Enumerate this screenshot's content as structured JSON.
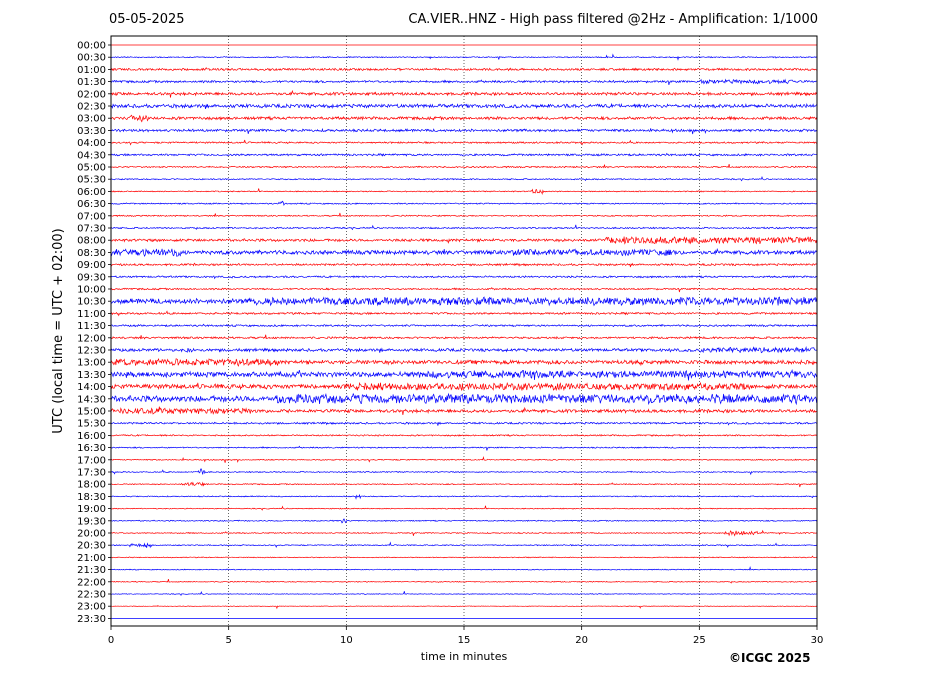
{
  "header": {
    "date": "05-05-2025",
    "title": "CA.VIER..HNZ - High pass filtered @2Hz - Amplification: 1/1000"
  },
  "footer": {
    "copyright": "©ICGC 2025"
  },
  "colors": {
    "trace_a": "#ff0000",
    "trace_b": "#0000ff",
    "grid": "#000000"
  },
  "chart_data": {
    "type": "line",
    "title": "CA.VIER..HNZ - High pass filtered @2Hz - Amplification: 1/1000",
    "xlabel": "time in minutes",
    "ylabel": "UTC (local time = UTC + 02:00)",
    "xlim": [
      0,
      30
    ],
    "x_ticks": [
      0,
      5,
      10,
      15,
      20,
      25,
      30
    ],
    "vertical_grid": true,
    "grid_style": "dotted",
    "row_labels": [
      "00:00",
      "00:30",
      "01:00",
      "01:30",
      "02:00",
      "02:30",
      "03:00",
      "03:30",
      "04:00",
      "04:30",
      "05:00",
      "05:30",
      "06:00",
      "06:30",
      "07:00",
      "07:30",
      "08:00",
      "08:30",
      "09:00",
      "09:30",
      "10:00",
      "10:30",
      "11:00",
      "11:30",
      "12:00",
      "12:30",
      "13:00",
      "13:30",
      "14:00",
      "14:30",
      "15:00",
      "15:30",
      "16:00",
      "16:30",
      "17:00",
      "17:30",
      "18:00",
      "18:30",
      "19:00",
      "19:30",
      "20:00",
      "20:30",
      "21:00",
      "21:30",
      "22:00",
      "22:30",
      "23:00",
      "23:30"
    ],
    "row_colors": [
      "red",
      "blue",
      "red",
      "blue",
      "red",
      "blue",
      "red",
      "blue",
      "red",
      "blue",
      "red",
      "blue",
      "red",
      "blue",
      "red",
      "blue",
      "red",
      "blue",
      "red",
      "blue",
      "red",
      "blue",
      "red",
      "blue",
      "red",
      "blue",
      "red",
      "blue",
      "red",
      "blue",
      "red",
      "blue",
      "red",
      "blue",
      "red",
      "blue",
      "red",
      "blue",
      "red",
      "blue",
      "red",
      "blue",
      "red",
      "blue",
      "red",
      "blue",
      "red",
      "blue"
    ],
    "noise_level": [
      0.3,
      0.6,
      1.2,
      1.2,
      1.6,
      2.0,
      1.6,
      1.4,
      0.9,
      1.1,
      0.8,
      0.7,
      0.6,
      0.7,
      0.7,
      0.8,
      1.5,
      2.2,
      1.1,
      1.0,
      0.9,
      2.8,
      1.1,
      1.0,
      1.1,
      1.6,
      2.2,
      2.8,
      2.6,
      3.4,
      1.8,
      1.0,
      0.8,
      0.7,
      0.6,
      0.6,
      0.6,
      0.6,
      0.5,
      0.6,
      0.6,
      0.6,
      0.5,
      0.5,
      0.5,
      0.4,
      0.3,
      0.2
    ],
    "rows_with_signal": [
      1,
      2,
      3,
      4,
      5,
      6,
      7,
      8,
      9,
      10,
      11,
      12,
      13,
      14,
      15,
      16,
      17,
      18,
      19,
      20,
      21,
      22,
      23,
      24,
      25,
      26,
      27,
      28,
      29,
      30,
      31,
      32,
      33,
      34,
      35,
      36,
      37,
      38,
      39,
      40,
      41,
      42,
      43,
      44,
      45,
      46
    ],
    "events": [
      {
        "row": 16,
        "start": 21,
        "end": 30,
        "amp": 2.5
      },
      {
        "row": 17,
        "start": 0,
        "end": 3,
        "amp": 2.2
      },
      {
        "row": 17,
        "start": 17,
        "end": 24,
        "amp": 1.5
      },
      {
        "row": 21,
        "start": 6,
        "end": 30,
        "amp": 1.8
      },
      {
        "row": 25,
        "start": 3.2,
        "end": 3.5,
        "amp": 3.0
      },
      {
        "row": 25,
        "start": 25,
        "end": 30,
        "amp": 1.5
      },
      {
        "row": 26,
        "start": 0,
        "end": 7,
        "amp": 1.8
      },
      {
        "row": 27,
        "start": 13,
        "end": 30,
        "amp": 1.5
      },
      {
        "row": 28,
        "start": 10,
        "end": 27,
        "amp": 1.5
      },
      {
        "row": 29,
        "start": 7,
        "end": 30,
        "amp": 2.0
      },
      {
        "row": 30,
        "start": 0,
        "end": 6,
        "amp": 1.5
      },
      {
        "row": 35,
        "start": 3.7,
        "end": 4.0,
        "amp": 3.0
      },
      {
        "row": 36,
        "start": 3,
        "end": 4,
        "amp": 1.5
      },
      {
        "row": 37,
        "start": 10.4,
        "end": 10.6,
        "amp": 2.5
      },
      {
        "row": 39,
        "start": 9.8,
        "end": 10.0,
        "amp": 2.5
      },
      {
        "row": 40,
        "start": 26,
        "end": 27.5,
        "amp": 2.5
      },
      {
        "row": 41,
        "start": 0.8,
        "end": 1.8,
        "amp": 1.5
      },
      {
        "row": 12,
        "start": 17.8,
        "end": 18.4,
        "amp": 2.0
      },
      {
        "row": 13,
        "start": 7.2,
        "end": 7.4,
        "amp": 3.0
      },
      {
        "row": 3,
        "start": 25,
        "end": 29,
        "amp": 1.2
      },
      {
        "row": 6,
        "start": 0.8,
        "end": 1.6,
        "amp": 2.0
      }
    ]
  }
}
